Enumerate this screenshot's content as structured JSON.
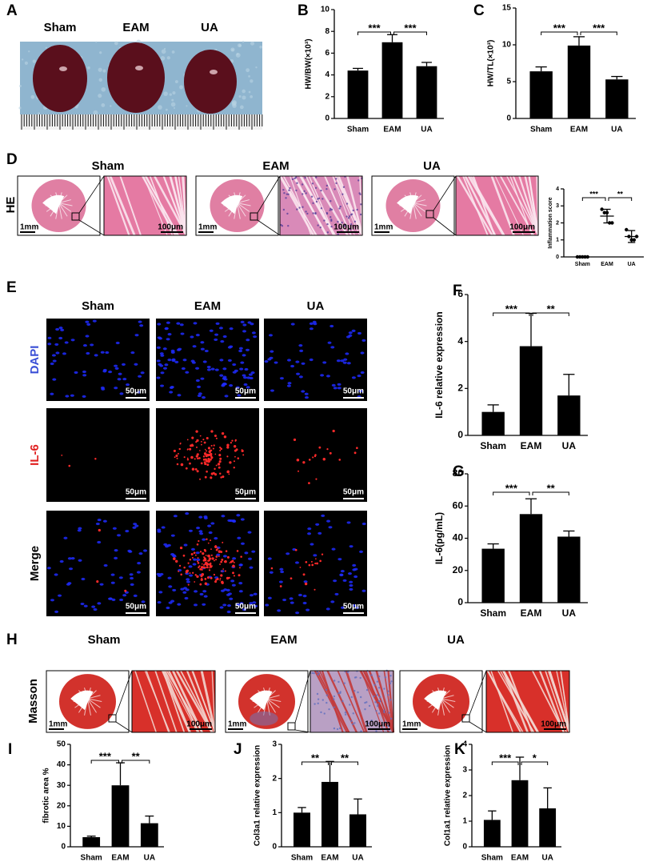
{
  "panels": {
    "A": {
      "label": "A",
      "groups": [
        "Sham",
        "EAM",
        "UA"
      ]
    },
    "D": {
      "label": "D",
      "groups": [
        "Sham",
        "EAM",
        "UA"
      ],
      "stain": "HE",
      "scale_overview": "1mm",
      "scale_zoom": "100μm"
    },
    "E": {
      "label": "E",
      "groups": [
        "Sham",
        "EAM",
        "UA"
      ],
      "channels": [
        "DAPI",
        "IL-6",
        "Merge"
      ],
      "scale": "50μm"
    },
    "H": {
      "label": "H",
      "groups": [
        "Sham",
        "EAM",
        "UA"
      ],
      "stain": "Masson",
      "scale_overview": "1mm",
      "scale_zoom": "100μm"
    }
  },
  "chart_data": [
    {
      "panel": "B",
      "type": "bar",
      "ylabel": "HW/BW(×10³)",
      "categories": [
        "Sham",
        "EAM",
        "UA"
      ],
      "values": [
        4.4,
        7.0,
        4.8
      ],
      "errors": [
        0.2,
        0.7,
        0.35
      ],
      "color": "#000000",
      "ylim": [
        0,
        10
      ],
      "yticks": [
        0,
        2,
        4,
        6,
        8,
        10
      ],
      "annotations": [
        "***",
        "***"
      ]
    },
    {
      "panel": "C",
      "type": "bar",
      "ylabel": "HW/TL(×10³)",
      "categories": [
        "Sham",
        "EAM",
        "UA"
      ],
      "values": [
        6.4,
        9.9,
        5.3
      ],
      "errors": [
        0.6,
        1.2,
        0.4
      ],
      "color": "#000000",
      "ylim": [
        0,
        15
      ],
      "yticks": [
        0,
        5,
        10,
        15
      ],
      "annotations": [
        "***",
        "***"
      ]
    },
    {
      "type": "strip",
      "ylabel": "Inflammation score",
      "categories": [
        "Sham",
        "EAM",
        "UA"
      ],
      "values": [
        [
          0,
          0,
          0,
          0,
          0
        ],
        [
          2.8,
          2.6,
          2.6,
          2.0,
          2.0
        ],
        [
          1.6,
          1.2,
          1.0,
          1.0,
          1.2
        ]
      ],
      "means": [
        0,
        2.4,
        1.2
      ],
      "errors": [
        0,
        0.4,
        0.35
      ],
      "color": "#000000",
      "ylim": [
        0,
        4
      ],
      "yticks": [
        0,
        1,
        2,
        3,
        4
      ],
      "annotations": [
        "***",
        "**"
      ]
    },
    {
      "panel": "F",
      "type": "bar",
      "ylabel": "IL-6 relative expression",
      "categories": [
        "Sham",
        "EAM",
        "UA"
      ],
      "values": [
        1.0,
        3.8,
        1.7
      ],
      "errors": [
        0.3,
        1.4,
        0.9
      ],
      "color": "#000000",
      "ylim": [
        0,
        6
      ],
      "yticks": [
        0,
        2,
        4,
        6
      ],
      "annotations": [
        "***",
        "**"
      ]
    },
    {
      "panel": "G",
      "type": "bar",
      "ylabel": "IL-6(pg/mL)",
      "categories": [
        "Sham",
        "EAM",
        "UA"
      ],
      "values": [
        33.5,
        55,
        41
      ],
      "errors": [
        3,
        9.5,
        3.5
      ],
      "color": "#000000",
      "ylim": [
        0,
        80
      ],
      "yticks": [
        0,
        20,
        40,
        60,
        80
      ],
      "annotations": [
        "***",
        "**"
      ]
    },
    {
      "panel": "I",
      "type": "bar",
      "ylabel": "fibrotic area %",
      "categories": [
        "Sham",
        "EAM",
        "UA"
      ],
      "values": [
        4.7,
        30,
        11.5
      ],
      "errors": [
        0.5,
        11,
        3.5
      ],
      "color": "#000000",
      "ylim": [
        0,
        50
      ],
      "yticks": [
        0,
        10,
        20,
        30,
        40,
        50
      ],
      "annotations": [
        "***",
        "**"
      ]
    },
    {
      "panel": "J",
      "type": "bar",
      "ylabel": "Col3a1 relative expression",
      "categories": [
        "Sham",
        "EAM",
        "UA"
      ],
      "values": [
        1.0,
        1.9,
        0.95
      ],
      "errors": [
        0.15,
        0.6,
        0.45
      ],
      "color": "#000000",
      "ylim": [
        0,
        3
      ],
      "yticks": [
        0,
        1,
        2,
        3
      ],
      "annotations": [
        "**",
        "**"
      ]
    },
    {
      "panel": "K",
      "type": "bar",
      "ylabel": "Col1a1 relative expression",
      "categories": [
        "Sham",
        "EAM",
        "UA"
      ],
      "values": [
        1.05,
        2.6,
        1.5
      ],
      "errors": [
        0.35,
        0.9,
        0.8
      ],
      "color": "#000000",
      "ylim": [
        0,
        4
      ],
      "yticks": [
        0,
        1,
        2,
        3,
        4
      ],
      "annotations": [
        "***",
        "*"
      ]
    }
  ]
}
